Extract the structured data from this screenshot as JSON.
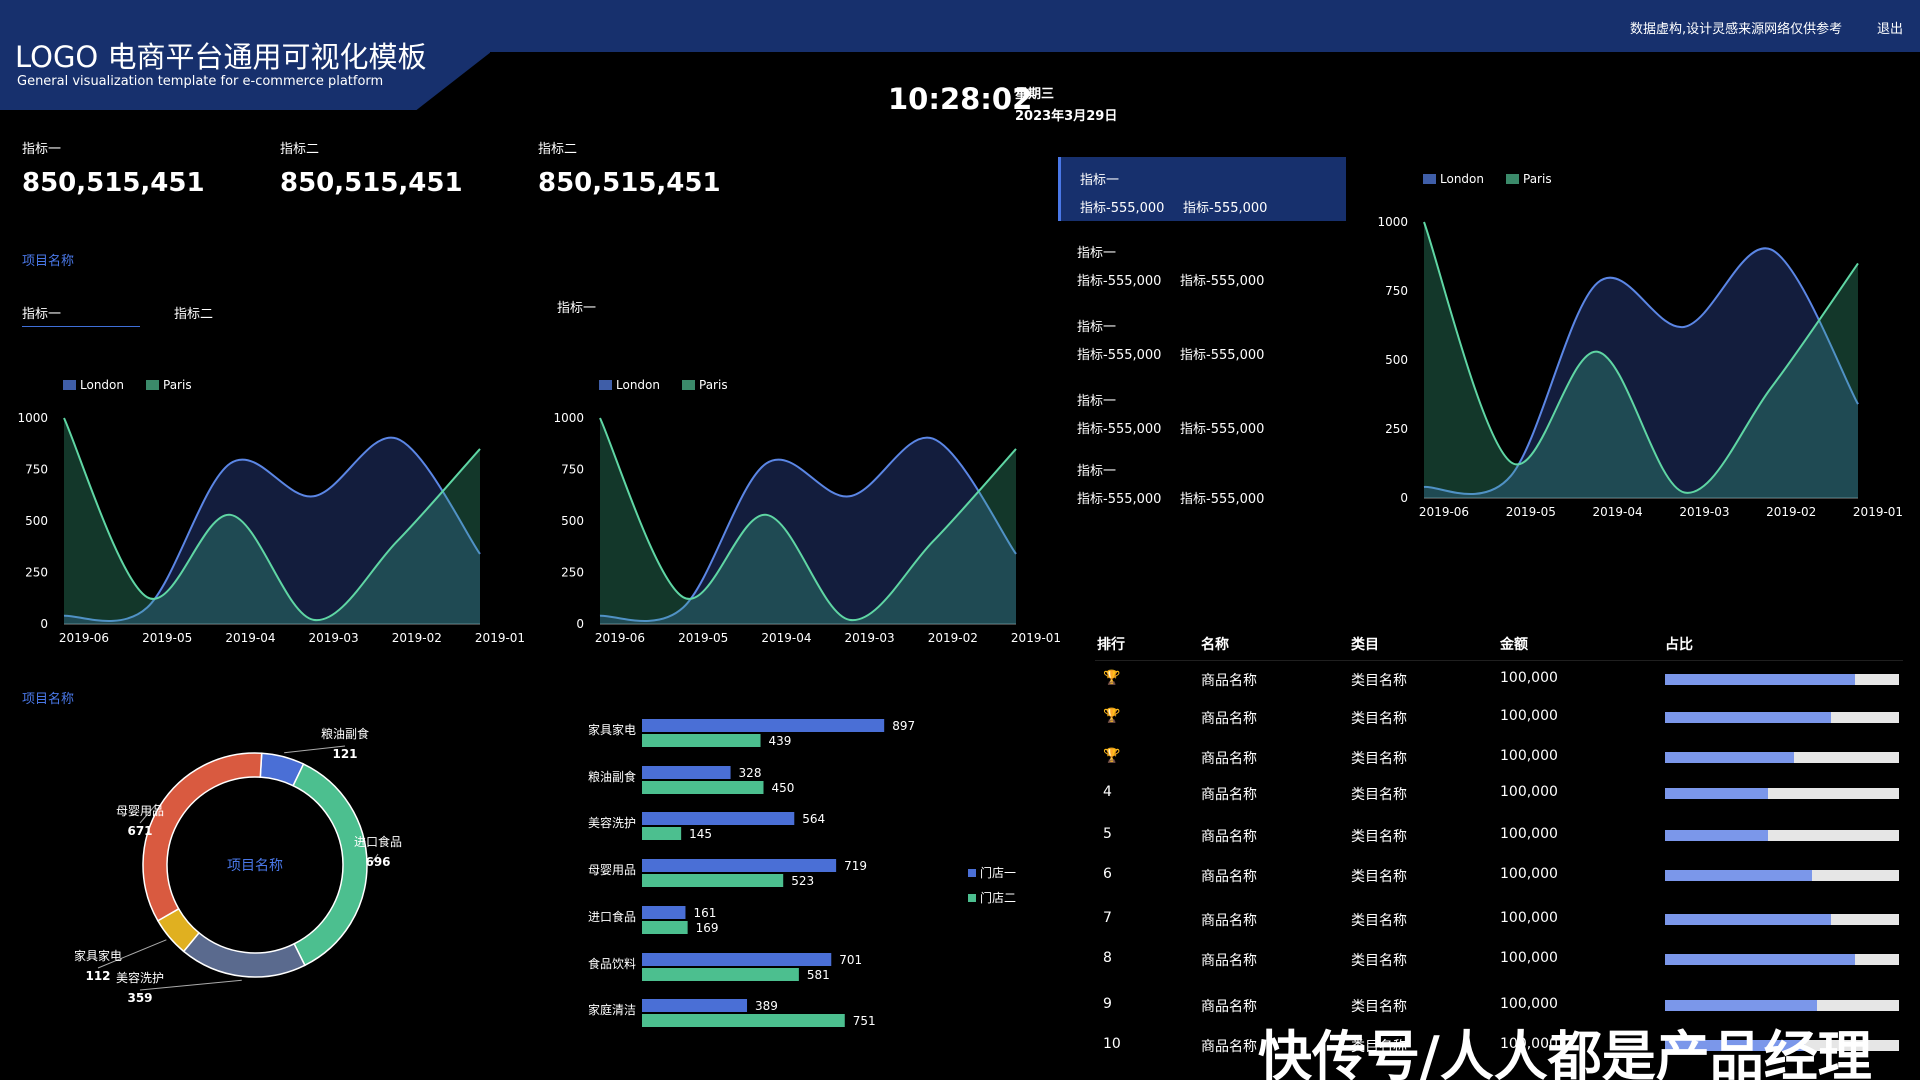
{
  "header": {
    "title": "LOGO 电商平台通用可视化模板",
    "subtitle": "General visualization template for e-commerce platform",
    "notice": "数据虚构,设计灵感来源网络仅供参考",
    "logout": "退出",
    "time": "10:28:02",
    "weekday": "星期三",
    "date": "2023年3月29日"
  },
  "kpis": [
    {
      "label": "指标一",
      "value": "850,515,451"
    },
    {
      "label": "指标二",
      "value": "850,515,451"
    },
    {
      "label": "指标二",
      "value": "850,515,451"
    }
  ],
  "section1": {
    "title": "项目名称",
    "tabs": [
      "指标一",
      "指标二"
    ]
  },
  "section2": {
    "title": "项目名称"
  },
  "middle_label": "指标一",
  "stat_list": [
    {
      "title": "指标一",
      "a": "指标-555,000",
      "b": "指标-555,000",
      "active": true
    },
    {
      "title": "指标一",
      "a": "指标-555,000",
      "b": "指标-555,000",
      "active": false
    },
    {
      "title": "指标一",
      "a": "指标-555,000",
      "b": "指标-555,000",
      "active": false
    },
    {
      "title": "指标一",
      "a": "指标-555,000",
      "b": "指标-555,000",
      "active": false
    },
    {
      "title": "指标一",
      "a": "指标-555,000",
      "b": "指标-555,000",
      "active": false
    }
  ],
  "colors": {
    "london": "#5b86e5",
    "paris": "#5fd6a4",
    "blue_bar": "#4a6fd6",
    "green_bar": "#4cbf8f",
    "accent": "#17306d"
  },
  "ranking": {
    "headers": [
      "排行",
      "名称",
      "类目",
      "金额",
      "占比"
    ],
    "rows": [
      {
        "rank": "🏆",
        "name": "商品名称",
        "cat": "类目名称",
        "amount": "100,000",
        "ratio": 0.81
      },
      {
        "rank": "🏆",
        "name": "商品名称",
        "cat": "类目名称",
        "amount": "100,000",
        "ratio": 0.71
      },
      {
        "rank": "🏆",
        "name": "商品名称",
        "cat": "类目名称",
        "amount": "100,000",
        "ratio": 0.55
      },
      {
        "rank": "4",
        "name": "商品名称",
        "cat": "类目名称",
        "amount": "100,000",
        "ratio": 0.44
      },
      {
        "rank": "5",
        "name": "商品名称",
        "cat": "类目名称",
        "amount": "100,000",
        "ratio": 0.44
      },
      {
        "rank": "6",
        "name": "商品名称",
        "cat": "类目名称",
        "amount": "100,000",
        "ratio": 0.63
      },
      {
        "rank": "7",
        "name": "商品名称",
        "cat": "类目名称",
        "amount": "100,000",
        "ratio": 0.71
      },
      {
        "rank": "8",
        "name": "商品名称",
        "cat": "类目名称",
        "amount": "100,000",
        "ratio": 0.81
      },
      {
        "rank": "9",
        "name": "商品名称",
        "cat": "类目名称",
        "amount": "100,000",
        "ratio": 0.65
      },
      {
        "rank": "10",
        "name": "商品名称",
        "cat": "类目名称",
        "amount": "100,000",
        "ratio": 0.6
      }
    ],
    "trophy_colors": [
      "#e0a020",
      "#d8d8d8",
      "#d2691e"
    ]
  },
  "watermark": "快传号/人人都是产品经理",
  "chart_data": [
    {
      "type": "area",
      "categories": [
        "2019-06",
        "2019-05",
        "2019-04",
        "2019-03",
        "2019-02",
        "2019-01"
      ],
      "ylim": [
        0,
        1000
      ],
      "yticks": [
        0,
        250,
        500,
        750,
        1000
      ],
      "series": [
        {
          "name": "London",
          "values": [
            40,
            80,
            780,
            620,
            900,
            340
          ]
        },
        {
          "name": "Paris",
          "values": [
            1000,
            130,
            530,
            20,
            400,
            850
          ]
        }
      ],
      "legend": "top-left"
    },
    {
      "type": "area",
      "categories": [
        "2019-06",
        "2019-05",
        "2019-04",
        "2019-03",
        "2019-02",
        "2019-01"
      ],
      "ylim": [
        0,
        1000
      ],
      "yticks": [
        0,
        250,
        500,
        750,
        1000
      ],
      "series": [
        {
          "name": "London",
          "values": [
            40,
            80,
            780,
            620,
            900,
            340
          ]
        },
        {
          "name": "Paris",
          "values": [
            1000,
            130,
            530,
            20,
            400,
            850
          ]
        }
      ],
      "legend": "top-left"
    },
    {
      "type": "area",
      "categories": [
        "2019-06",
        "2019-05",
        "2019-04",
        "2019-03",
        "2019-02",
        "2019-01"
      ],
      "ylim": [
        0,
        1000
      ],
      "yticks": [
        0,
        250,
        500,
        750,
        1000
      ],
      "series": [
        {
          "name": "London",
          "values": [
            40,
            80,
            780,
            620,
            900,
            340
          ]
        },
        {
          "name": "Paris",
          "values": [
            1000,
            130,
            530,
            20,
            400,
            850
          ]
        }
      ],
      "legend": "top-left"
    },
    {
      "type": "pie",
      "center_label": "项目名称",
      "slices": [
        {
          "label": "粮油副食",
          "value": 121,
          "color": "#4a6fd6"
        },
        {
          "label": "进口食品",
          "value": 696,
          "color": "#4cbf8f"
        },
        {
          "label": "美容洗护",
          "value": 359,
          "color": "#5a6a8e"
        },
        {
          "label": "家具家电",
          "value": 112,
          "color": "#e0b020"
        },
        {
          "label": "母婴用品",
          "value": 671,
          "color": "#d95a40"
        }
      ]
    },
    {
      "type": "bar",
      "categories": [
        "家具家电",
        "粮油副食",
        "美容洗护",
        "母婴用品",
        "进口食品",
        "食品饮料",
        "家庭清洁"
      ],
      "series": [
        {
          "name": "门店一",
          "values": [
            897,
            328,
            564,
            719,
            161,
            701,
            389
          ]
        },
        {
          "name": "门店二",
          "values": [
            439,
            450,
            145,
            523,
            169,
            581,
            751
          ]
        }
      ],
      "legend": "right"
    }
  ]
}
